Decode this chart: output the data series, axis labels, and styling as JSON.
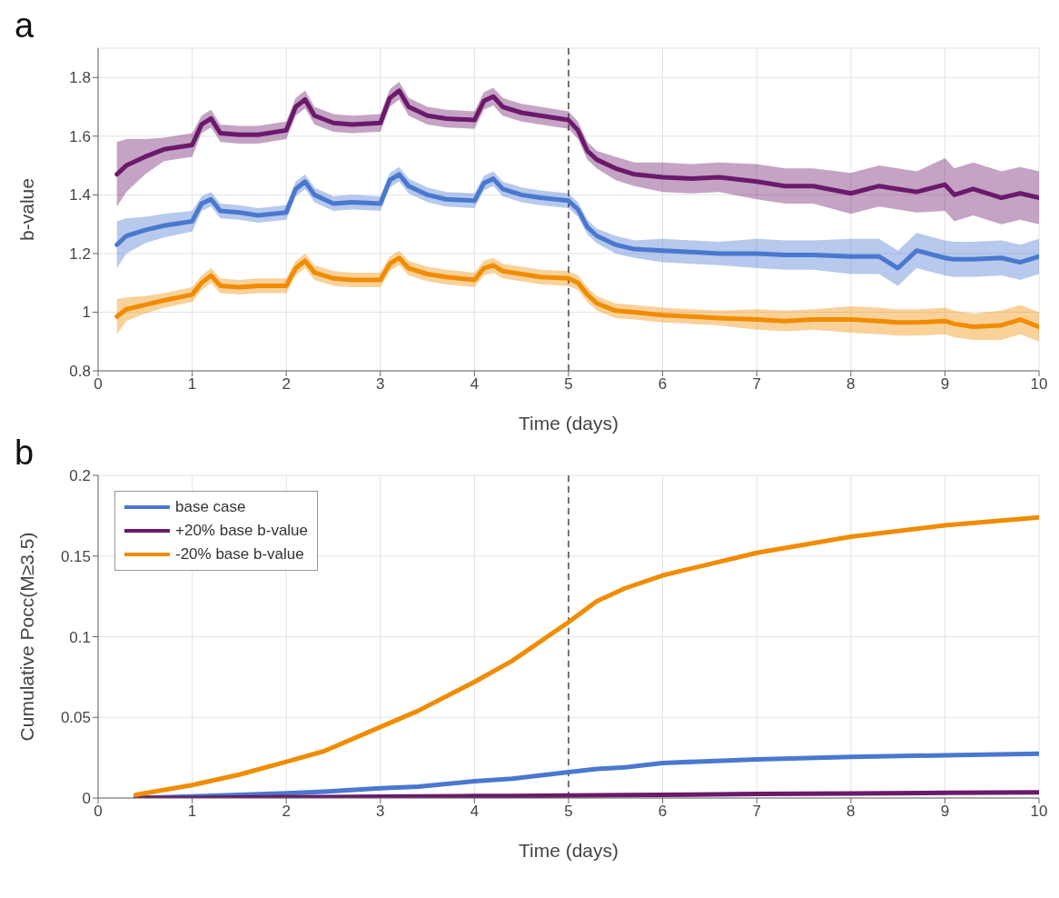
{
  "chart_data": [
    {
      "type": "line",
      "title": "a",
      "xlabel": "Time (days)",
      "ylabel": "b-value",
      "xlim": [
        0,
        10
      ],
      "xticks": [
        0,
        1,
        2,
        3,
        4,
        5,
        6,
        7,
        8,
        9,
        10
      ],
      "ylim": [
        0.8,
        1.9
      ],
      "yticks": [
        0.8,
        1,
        1.2,
        1.4,
        1.6,
        1.8
      ],
      "grid": true,
      "legend": false,
      "marker": "none",
      "line_style": "solid",
      "ref_lines": [
        {
          "axis": "x",
          "value": 5,
          "line_style": "dashed",
          "color": "#333333"
        }
      ],
      "x": [
        0.2,
        0.3,
        0.5,
        0.7,
        1.0,
        1.1,
        1.2,
        1.3,
        1.5,
        1.7,
        2.0,
        2.1,
        2.2,
        2.3,
        2.5,
        2.7,
        3.0,
        3.1,
        3.2,
        3.3,
        3.5,
        3.7,
        4.0,
        4.1,
        4.2,
        4.3,
        4.5,
        4.7,
        5.0,
        5.1,
        5.2,
        5.3,
        5.5,
        5.7,
        6.0,
        6.3,
        6.6,
        7.0,
        7.3,
        7.6,
        8.0,
        8.3,
        8.5,
        8.7,
        9.0,
        9.1,
        9.3,
        9.6,
        9.8,
        10.0
      ],
      "series": [
        {
          "color": "#4a78d0",
          "values": [
            1.23,
            1.26,
            1.28,
            1.295,
            1.31,
            1.37,
            1.385,
            1.345,
            1.34,
            1.33,
            1.34,
            1.42,
            1.445,
            1.4,
            1.37,
            1.375,
            1.37,
            1.45,
            1.47,
            1.43,
            1.4,
            1.385,
            1.38,
            1.44,
            1.455,
            1.42,
            1.4,
            1.39,
            1.38,
            1.35,
            1.29,
            1.26,
            1.23,
            1.215,
            1.21,
            1.205,
            1.2,
            1.2,
            1.195,
            1.195,
            1.19,
            1.19,
            1.15,
            1.21,
            1.185,
            1.18,
            1.18,
            1.185,
            1.17,
            1.19
          ],
          "lower": [
            1.15,
            1.2,
            1.235,
            1.255,
            1.275,
            1.345,
            1.36,
            1.32,
            1.315,
            1.305,
            1.315,
            1.395,
            1.42,
            1.375,
            1.345,
            1.35,
            1.345,
            1.425,
            1.445,
            1.405,
            1.375,
            1.36,
            1.355,
            1.415,
            1.43,
            1.395,
            1.375,
            1.365,
            1.355,
            1.325,
            1.265,
            1.235,
            1.2,
            1.185,
            1.17,
            1.165,
            1.16,
            1.15,
            1.145,
            1.145,
            1.13,
            1.13,
            1.09,
            1.15,
            1.125,
            1.12,
            1.12,
            1.125,
            1.11,
            1.13
          ],
          "upper": [
            1.31,
            1.32,
            1.325,
            1.335,
            1.345,
            1.395,
            1.41,
            1.37,
            1.365,
            1.355,
            1.365,
            1.445,
            1.47,
            1.425,
            1.395,
            1.4,
            1.395,
            1.475,
            1.495,
            1.455,
            1.425,
            1.41,
            1.405,
            1.465,
            1.48,
            1.445,
            1.425,
            1.415,
            1.405,
            1.375,
            1.315,
            1.285,
            1.26,
            1.245,
            1.25,
            1.245,
            1.24,
            1.25,
            1.245,
            1.245,
            1.25,
            1.25,
            1.21,
            1.27,
            1.245,
            1.24,
            1.24,
            1.245,
            1.23,
            1.25
          ]
        },
        {
          "color": "#6b1a6b",
          "values": [
            1.47,
            1.5,
            1.53,
            1.555,
            1.57,
            1.64,
            1.66,
            1.61,
            1.605,
            1.605,
            1.62,
            1.7,
            1.725,
            1.67,
            1.645,
            1.64,
            1.645,
            1.73,
            1.755,
            1.7,
            1.67,
            1.66,
            1.655,
            1.72,
            1.735,
            1.7,
            1.68,
            1.67,
            1.655,
            1.62,
            1.55,
            1.52,
            1.49,
            1.47,
            1.46,
            1.455,
            1.46,
            1.445,
            1.43,
            1.43,
            1.405,
            1.43,
            1.42,
            1.41,
            1.435,
            1.4,
            1.42,
            1.39,
            1.405,
            1.39
          ],
          "lower": [
            1.36,
            1.41,
            1.47,
            1.515,
            1.53,
            1.61,
            1.63,
            1.58,
            1.575,
            1.575,
            1.59,
            1.67,
            1.695,
            1.64,
            1.615,
            1.61,
            1.615,
            1.7,
            1.725,
            1.67,
            1.64,
            1.63,
            1.625,
            1.69,
            1.705,
            1.67,
            1.65,
            1.64,
            1.625,
            1.59,
            1.52,
            1.49,
            1.45,
            1.43,
            1.41,
            1.405,
            1.41,
            1.385,
            1.37,
            1.37,
            1.335,
            1.36,
            1.35,
            1.34,
            1.345,
            1.31,
            1.33,
            1.3,
            1.315,
            1.3
          ],
          "upper": [
            1.58,
            1.59,
            1.59,
            1.595,
            1.61,
            1.67,
            1.69,
            1.64,
            1.635,
            1.635,
            1.65,
            1.73,
            1.755,
            1.7,
            1.675,
            1.67,
            1.675,
            1.76,
            1.785,
            1.73,
            1.7,
            1.69,
            1.685,
            1.75,
            1.765,
            1.73,
            1.71,
            1.7,
            1.685,
            1.65,
            1.58,
            1.55,
            1.53,
            1.51,
            1.51,
            1.505,
            1.51,
            1.505,
            1.49,
            1.49,
            1.475,
            1.5,
            1.49,
            1.48,
            1.525,
            1.49,
            1.51,
            1.48,
            1.495,
            1.48
          ]
        },
        {
          "color": "#f08c00",
          "values": [
            0.985,
            1.01,
            1.025,
            1.04,
            1.06,
            1.1,
            1.125,
            1.09,
            1.085,
            1.09,
            1.09,
            1.15,
            1.175,
            1.135,
            1.115,
            1.11,
            1.11,
            1.165,
            1.185,
            1.15,
            1.13,
            1.12,
            1.11,
            1.15,
            1.16,
            1.14,
            1.13,
            1.12,
            1.115,
            1.1,
            1.06,
            1.03,
            1.005,
            1.0,
            0.99,
            0.985,
            0.98,
            0.975,
            0.97,
            0.975,
            0.975,
            0.97,
            0.965,
            0.965,
            0.97,
            0.96,
            0.95,
            0.955,
            0.975,
            0.95
          ],
          "lower": [
            0.925,
            0.97,
            0.995,
            1.015,
            1.035,
            1.075,
            1.1,
            1.065,
            1.06,
            1.065,
            1.065,
            1.125,
            1.15,
            1.11,
            1.09,
            1.085,
            1.085,
            1.14,
            1.16,
            1.125,
            1.105,
            1.095,
            1.085,
            1.125,
            1.135,
            1.115,
            1.105,
            1.095,
            1.09,
            1.075,
            1.035,
            1.005,
            0.98,
            0.975,
            0.965,
            0.96,
            0.955,
            0.94,
            0.935,
            0.94,
            0.93,
            0.925,
            0.92,
            0.92,
            0.925,
            0.915,
            0.905,
            0.905,
            0.925,
            0.9
          ],
          "upper": [
            1.045,
            1.05,
            1.055,
            1.065,
            1.085,
            1.125,
            1.15,
            1.115,
            1.11,
            1.115,
            1.115,
            1.175,
            1.2,
            1.16,
            1.14,
            1.135,
            1.135,
            1.19,
            1.21,
            1.175,
            1.155,
            1.145,
            1.135,
            1.175,
            1.185,
            1.165,
            1.155,
            1.145,
            1.14,
            1.125,
            1.085,
            1.055,
            1.03,
            1.025,
            1.015,
            1.01,
            1.005,
            1.01,
            1.005,
            1.01,
            1.02,
            1.015,
            1.01,
            1.01,
            1.015,
            1.005,
            0.995,
            1.005,
            1.025,
            1.0
          ]
        }
      ]
    },
    {
      "type": "line",
      "title": "b",
      "xlabel": "Time (days)",
      "ylabel": "Cumulative Pocc(M≥3.5)",
      "xlim": [
        0,
        10
      ],
      "xticks": [
        0,
        1,
        2,
        3,
        4,
        5,
        6,
        7,
        8,
        9,
        10
      ],
      "ylim": [
        0,
        0.2
      ],
      "yticks": [
        0,
        0.05,
        0.1,
        0.15,
        0.2
      ],
      "grid": true,
      "legend": "top left",
      "marker": "none",
      "line_style": "solid",
      "ref_lines": [
        {
          "axis": "x",
          "value": 5,
          "line_style": "dashed",
          "color": "#333333"
        }
      ],
      "x": [
        0.4,
        1,
        1.5,
        2,
        2.4,
        3,
        3.4,
        4,
        4.4,
        5,
        5.3,
        5.6,
        6,
        7,
        8,
        9,
        10
      ],
      "series": [
        {
          "name": "base case",
          "color": "#4a78d0",
          "values": [
            0,
            0.001,
            0.002,
            0.003,
            0.004,
            0.006,
            0.007,
            0.0104,
            0.012,
            0.016,
            0.018,
            0.019,
            0.0217,
            0.024,
            0.0255,
            0.0265,
            0.0275
          ]
        },
        {
          "name": "+20% base b-value",
          "color": "#6b1a6b",
          "values": [
            0,
            0,
            0.0003,
            0.0005,
            0.0006,
            0.0008,
            0.001,
            0.0012,
            0.0013,
            0.0015,
            0.0017,
            0.0019,
            0.002,
            0.0025,
            0.0028,
            0.0032,
            0.0035
          ]
        },
        {
          "name": "-20% base b-value",
          "color": "#f08c00",
          "values": [
            0.002,
            0.008,
            0.0145,
            0.0225,
            0.029,
            0.044,
            0.054,
            0.072,
            0.085,
            0.109,
            0.122,
            0.13,
            0.138,
            0.152,
            0.162,
            0.169,
            0.174
          ]
        }
      ]
    }
  ]
}
